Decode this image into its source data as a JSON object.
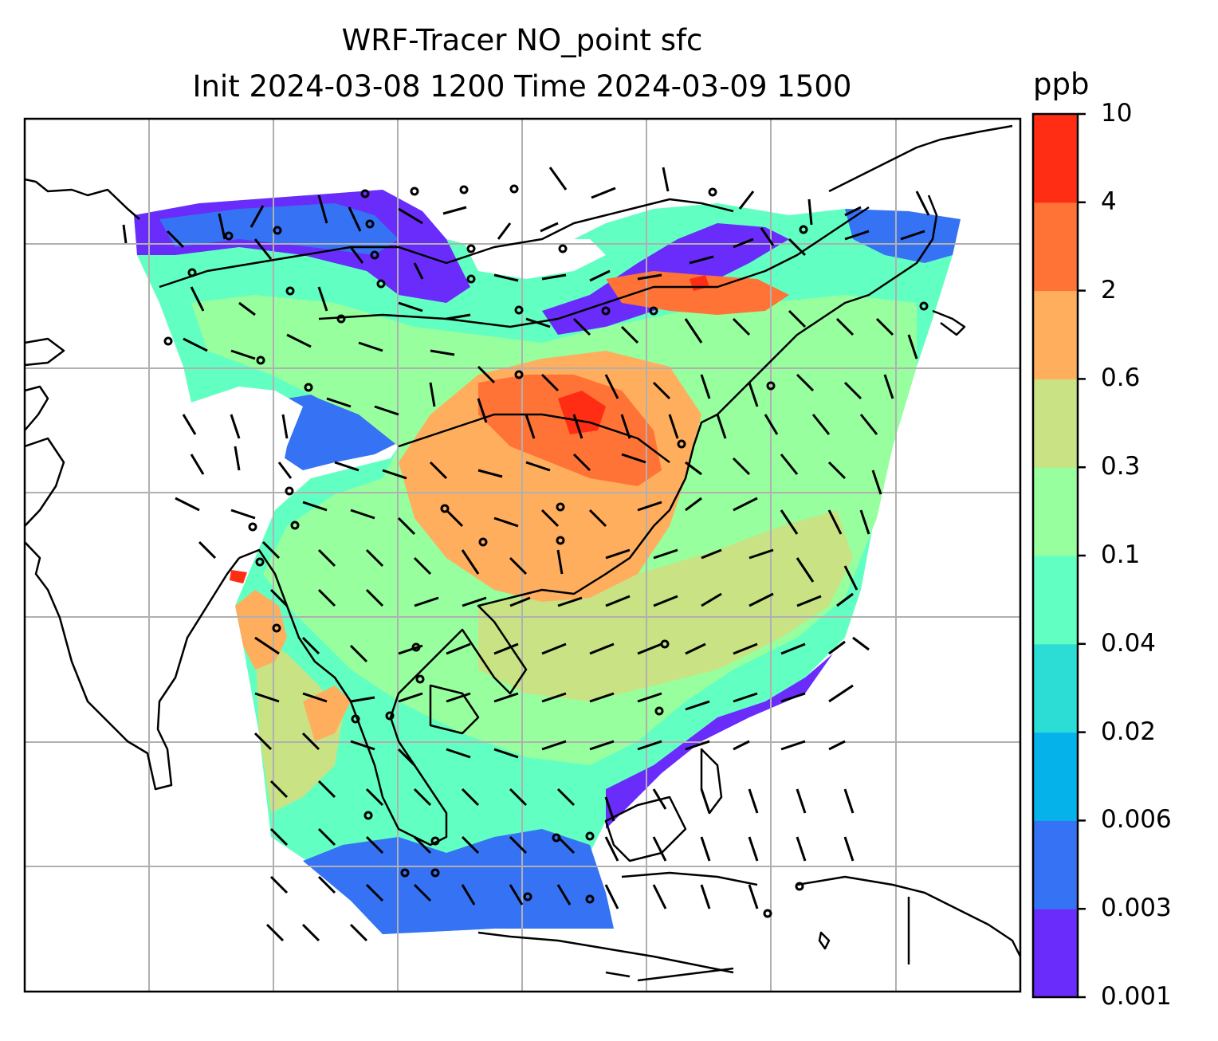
{
  "title": {
    "line1": "WRF-Tracer NO_point sfc",
    "line2": "Init 2024-03-08 1200 Time 2024-03-09 1500"
  },
  "colorbar": {
    "unit": "ppb",
    "levels": [
      "0.001",
      "0.003",
      "0.006",
      "0.02",
      "0.04",
      "0.1",
      "0.3",
      "0.6",
      "2",
      "4",
      "10"
    ],
    "colors": [
      "#6a2cfb",
      "#3672f4",
      "#06b2ea",
      "#2cddd6",
      "#62ffc2",
      "#97ff9d",
      "#c9e284",
      "#ffae5e",
      "#ff7337",
      "#ff2d13"
    ]
  },
  "map": {
    "projection_grid": "gridlines",
    "field": "NO_point surface concentration",
    "colors": {
      "land_outline": "#000000",
      "grid": "#b0b0b0",
      "wind_barbs": "#000000"
    }
  }
}
